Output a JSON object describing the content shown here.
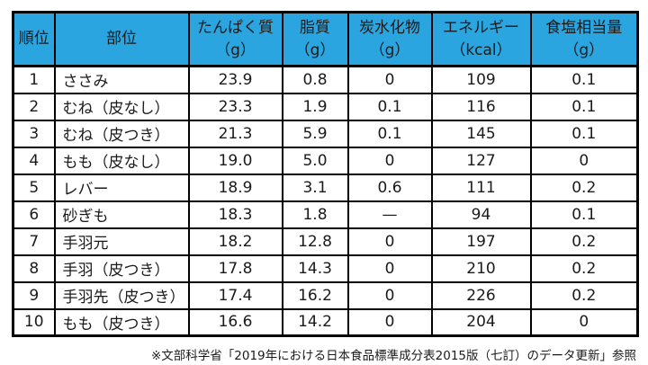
{
  "table": {
    "header_bg": "#2ba5df",
    "border_color": "#000000",
    "columns": [
      {
        "label": "順位",
        "unit": ""
      },
      {
        "label": "部位",
        "unit": ""
      },
      {
        "label": "たんぱく質",
        "unit": "（g）"
      },
      {
        "label": "脂質",
        "unit": "（g）"
      },
      {
        "label": "炭水化物",
        "unit": "（g）"
      },
      {
        "label": "エネルギー",
        "unit": "（kcal）"
      },
      {
        "label": "食塩相当量",
        "unit": "（g）"
      }
    ],
    "rows": [
      {
        "rank": "1",
        "part": "ささみ",
        "protein": "23.9",
        "fat": "0.8",
        "carb": "0",
        "energy": "109",
        "salt": "0.1"
      },
      {
        "rank": "2",
        "part": "むね（皮なし）",
        "protein": "23.3",
        "fat": "1.9",
        "carb": "0.1",
        "energy": "116",
        "salt": "0.1"
      },
      {
        "rank": "3",
        "part": "むね（皮つき）",
        "protein": "21.3",
        "fat": "5.9",
        "carb": "0.1",
        "energy": "145",
        "salt": "0.1"
      },
      {
        "rank": "4",
        "part": "もも（皮なし）",
        "protein": "19.0",
        "fat": "5.0",
        "carb": "0",
        "energy": "127",
        "salt": "0"
      },
      {
        "rank": "5",
        "part": "レバー",
        "protein": "18.9",
        "fat": "3.1",
        "carb": "0.6",
        "energy": "111",
        "salt": "0.2"
      },
      {
        "rank": "6",
        "part": "砂ぎも",
        "protein": "18.3",
        "fat": "1.8",
        "carb": "—",
        "energy": "94",
        "salt": "0.1"
      },
      {
        "rank": "7",
        "part": "手羽元",
        "protein": "18.2",
        "fat": "12.8",
        "carb": "0",
        "energy": "197",
        "salt": "0.2"
      },
      {
        "rank": "8",
        "part": "手羽（皮つき）",
        "protein": "17.8",
        "fat": "14.3",
        "carb": "0",
        "energy": "210",
        "salt": "0.2"
      },
      {
        "rank": "9",
        "part": "手羽先（皮つき）",
        "protein": "17.4",
        "fat": "16.2",
        "carb": "0",
        "energy": "226",
        "salt": "0.2"
      },
      {
        "rank": "10",
        "part": "もも（皮つき）",
        "protein": "16.6",
        "fat": "14.2",
        "carb": "0",
        "energy": "204",
        "salt": "0"
      }
    ]
  },
  "footer": {
    "note": "※文部科学省「2019年における日本食品標準成分表2015版（七訂）のデータ更新」参照"
  },
  "chart_data": {
    "type": "table",
    "title": "",
    "columns": [
      "順位",
      "部位",
      "たんぱく質（g）",
      "脂質（g）",
      "炭水化物（g）",
      "エネルギー（kcal）",
      "食塩相当量（g）"
    ],
    "rows": [
      [
        "1",
        "ささみ",
        "23.9",
        "0.8",
        "0",
        "109",
        "0.1"
      ],
      [
        "2",
        "むね（皮なし）",
        "23.3",
        "1.9",
        "0.1",
        "116",
        "0.1"
      ],
      [
        "3",
        "むね（皮つき）",
        "21.3",
        "5.9",
        "0.1",
        "145",
        "0.1"
      ],
      [
        "4",
        "もも（皮なし）",
        "19.0",
        "5.0",
        "0",
        "127",
        "0"
      ],
      [
        "5",
        "レバー",
        "18.9",
        "3.1",
        "0.6",
        "111",
        "0.2"
      ],
      [
        "6",
        "砂ぎも",
        "18.3",
        "1.8",
        "—",
        "94",
        "0.1"
      ],
      [
        "7",
        "手羽元",
        "18.2",
        "12.8",
        "0",
        "197",
        "0.2"
      ],
      [
        "8",
        "手羽（皮つき）",
        "17.8",
        "14.3",
        "0",
        "210",
        "0.2"
      ],
      [
        "9",
        "手羽先（皮つき）",
        "17.4",
        "16.2",
        "0",
        "226",
        "0.2"
      ],
      [
        "10",
        "もも（皮つき）",
        "16.6",
        "14.2",
        "0",
        "204",
        "0"
      ]
    ],
    "note": "※文部科学省「2019年における日本食品標準成分表2015版（七訂）のデータ更新」参照",
    "header_background": "#2ba5df",
    "grid": true
  }
}
